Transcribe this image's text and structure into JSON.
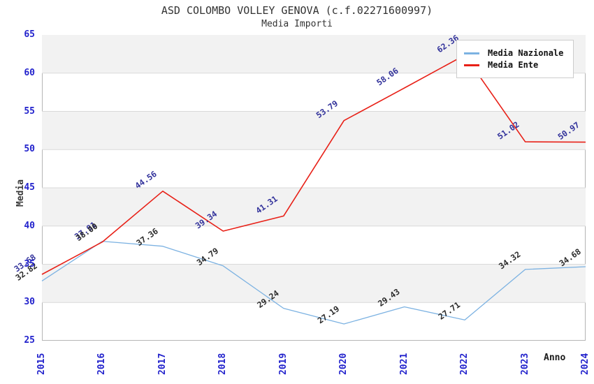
{
  "title": "ASD COLOMBO VOLLEY GENOVA (c.f.02271600997)",
  "subtitle": "Media Importi",
  "axes": {
    "y_label": "Media",
    "x_label": "Anno",
    "y_ticks": [
      65,
      60,
      55,
      50,
      45,
      40,
      35,
      30,
      25
    ]
  },
  "legend": {
    "items": [
      {
        "label": "Media Nazionale",
        "color": "#7cb2e2"
      },
      {
        "label": "Media Ente",
        "color": "#e82017"
      }
    ]
  },
  "colors": {
    "band_gray": "#f2f2f2",
    "gridline": "#d9d9d9",
    "plot_border": "#b5b5b5",
    "tick_blue": "#2222cc",
    "label_navy": "#32329b",
    "label_dark": "#2b2b2b",
    "blue_line": "#7cb2e2",
    "red_line": "#e82017"
  },
  "chart_data": {
    "type": "line",
    "title": "ASD COLOMBO VOLLEY GENOVA (c.f.02271600997)",
    "subtitle": "Media Importi",
    "xlabel": "Anno",
    "ylabel": "Media",
    "ylim": [
      25,
      65
    ],
    "grid": "horizontal-bands",
    "legend_position": "top-right-inside",
    "x": [
      "2015",
      "2016",
      "2017",
      "2018",
      "2019",
      "2020",
      "2021",
      "2022",
      "2023",
      "2024"
    ],
    "series": [
      {
        "name": "Media Nazionale",
        "color": "#7cb2e2",
        "label_color": "#2b2b2b",
        "values": [
          32.82,
          38.0,
          37.36,
          34.79,
          29.24,
          27.19,
          29.43,
          27.71,
          34.32,
          34.68
        ]
      },
      {
        "name": "Media Ente",
        "color": "#e82017",
        "label_color": "#32329b",
        "values": [
          33.68,
          37.91,
          44.56,
          39.34,
          41.31,
          53.79,
          58.06,
          62.36,
          51.02,
          50.97
        ]
      }
    ],
    "gray_bands": [
      [
        30,
        35
      ],
      [
        40,
        45
      ],
      [
        50,
        55
      ],
      [
        60,
        65
      ]
    ],
    "gridline_values": [
      30,
      35,
      40,
      45,
      50,
      55,
      60
    ]
  }
}
